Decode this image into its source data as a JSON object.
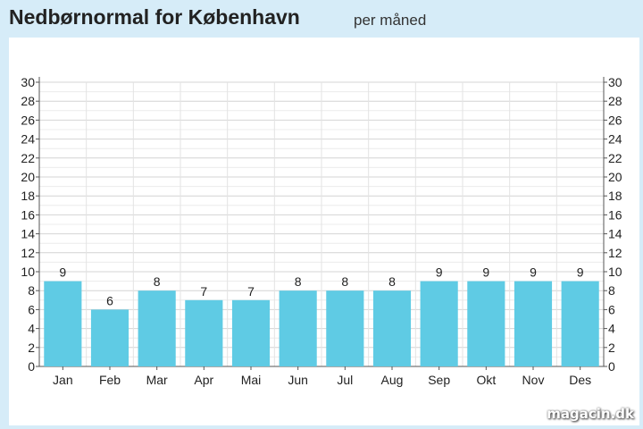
{
  "header": {
    "title": "Nedbørnormal for København",
    "subtitle": "per måned"
  },
  "watermark": "magacin.dk",
  "colors": {
    "bar": "#5fcbe4",
    "grid": "#d9d9d9",
    "background": "#d6ecf8"
  },
  "chart_data": {
    "type": "bar",
    "categories": [
      "Jan",
      "Feb",
      "Mar",
      "Apr",
      "Mai",
      "Jun",
      "Jul",
      "Aug",
      "Sep",
      "Okt",
      "Nov",
      "Des"
    ],
    "values": [
      9,
      6,
      8,
      7,
      7,
      8,
      8,
      8,
      9,
      9,
      9,
      9
    ],
    "ylim": [
      0,
      30
    ],
    "yticks": [
      0,
      2,
      4,
      6,
      8,
      10,
      12,
      14,
      16,
      18,
      20,
      22,
      24,
      26,
      28,
      30
    ],
    "data_labels": true,
    "grid": true,
    "secondary_y_axis": true
  }
}
